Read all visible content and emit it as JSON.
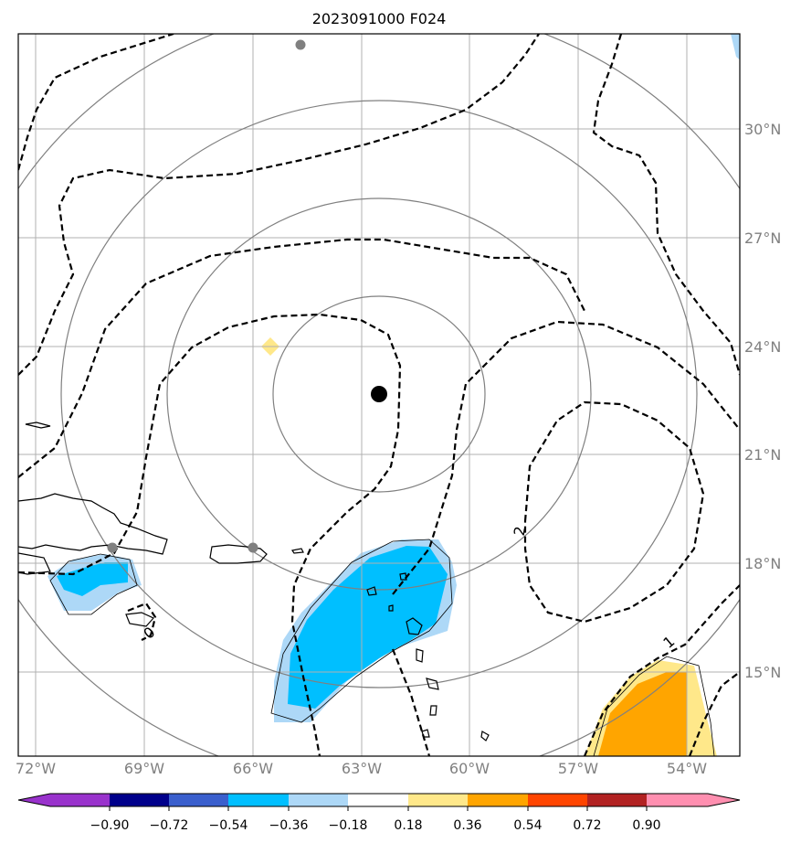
{
  "title": "2023091000 F024",
  "map": {
    "lon_range": [
      -72.5,
      -52.5
    ],
    "lat_range": [
      12.7,
      32.7
    ],
    "lon_ticks": [
      "72°W",
      "69°W",
      "66°W",
      "63°W",
      "60°W",
      "57°W",
      "54°W"
    ],
    "lat_ticks": [
      "15°N",
      "18°N",
      "21°N",
      "24°N",
      "27°N",
      "30°N"
    ],
    "center_marker": {
      "lon": -62.5,
      "lat": 22.7
    },
    "contour_labels": [
      "2",
      "1",
      "0"
    ],
    "colors": {
      "grid": "#b0b0b0",
      "range_rings": "#808080",
      "coast": "#000000",
      "neg_light": "#add8f7",
      "neg_mid": "#00bfff",
      "pos_light": "#ffe88a",
      "pos_mid": "#ffa500"
    }
  },
  "colorbar": {
    "ticks": [
      "−0.90",
      "−0.72",
      "−0.54",
      "−0.36",
      "−0.18",
      "0.18",
      "0.36",
      "0.54",
      "0.72",
      "0.90"
    ],
    "colors": [
      "#9932cc",
      "#00008b",
      "#3a5fcd",
      "#00bfff",
      "#add8f7",
      "#ffffff",
      "#ffe88a",
      "#ffa500",
      "#ff4500",
      "#b22222",
      "#ff8fb0"
    ]
  }
}
